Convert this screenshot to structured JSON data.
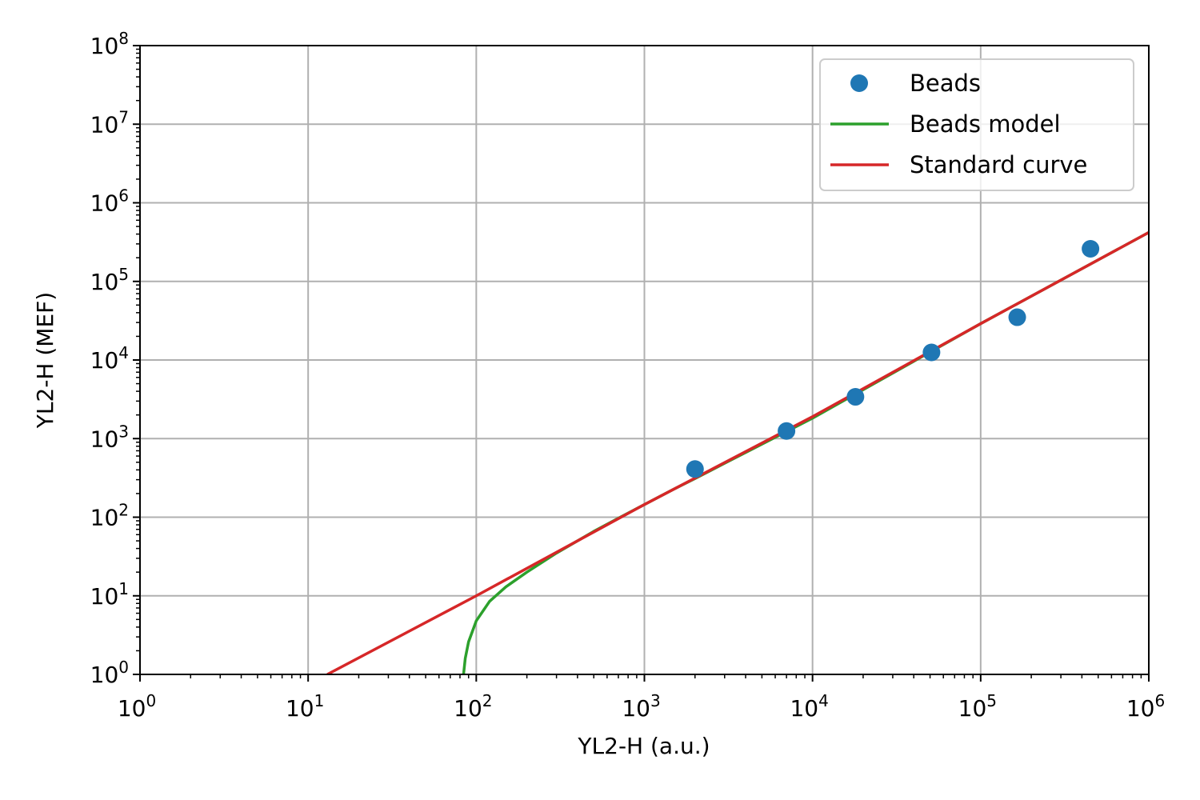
{
  "chart_data": {
    "type": "scatter",
    "title": "",
    "xlabel": "YL2-H (a.u.)",
    "ylabel": "YL2-H (MEF)",
    "xscale": "log",
    "yscale": "log",
    "xlim": [
      1,
      1000000
    ],
    "ylim": [
      1,
      100000000
    ],
    "x_ticks": [
      {
        "base": "10",
        "exp": "0"
      },
      {
        "base": "10",
        "exp": "1"
      },
      {
        "base": "10",
        "exp": "2"
      },
      {
        "base": "10",
        "exp": "3"
      },
      {
        "base": "10",
        "exp": "4"
      },
      {
        "base": "10",
        "exp": "5"
      },
      {
        "base": "10",
        "exp": "6"
      }
    ],
    "y_ticks": [
      {
        "base": "10",
        "exp": "0"
      },
      {
        "base": "10",
        "exp": "1"
      },
      {
        "base": "10",
        "exp": "2"
      },
      {
        "base": "10",
        "exp": "3"
      },
      {
        "base": "10",
        "exp": "4"
      },
      {
        "base": "10",
        "exp": "5"
      },
      {
        "base": "10",
        "exp": "6"
      },
      {
        "base": "10",
        "exp": "7"
      },
      {
        "base": "10",
        "exp": "8"
      }
    ],
    "grid": true,
    "legend_position": "top-right",
    "series": [
      {
        "name": "Beads",
        "kind": "markers",
        "color": "#1f77b4",
        "points": [
          {
            "x": 2000,
            "y": 410
          },
          {
            "x": 7000,
            "y": 1250
          },
          {
            "x": 18000,
            "y": 3400
          },
          {
            "x": 51000,
            "y": 12500
          },
          {
            "x": 165000,
            "y": 35000
          },
          {
            "x": 450000,
            "y": 260000
          }
        ]
      },
      {
        "name": "Beads model",
        "kind": "line",
        "color": "#2ca02c",
        "points": [
          {
            "x": 84,
            "y": 1
          },
          {
            "x": 86,
            "y": 1.6
          },
          {
            "x": 90,
            "y": 2.6
          },
          {
            "x": 100,
            "y": 4.8
          },
          {
            "x": 120,
            "y": 8.5
          },
          {
            "x": 150,
            "y": 13
          },
          {
            "x": 200,
            "y": 20
          },
          {
            "x": 300,
            "y": 35
          },
          {
            "x": 500,
            "y": 66
          },
          {
            "x": 700,
            "y": 97
          },
          {
            "x": 1000,
            "y": 145
          },
          {
            "x": 1500,
            "y": 228
          },
          {
            "x": 2000,
            "y": 310
          },
          {
            "x": 3000,
            "y": 485
          },
          {
            "x": 5000,
            "y": 850
          },
          {
            "x": 10000,
            "y": 1820
          },
          {
            "x": 100000,
            "y": 29000
          },
          {
            "x": 1000000,
            "y": 420000
          }
        ]
      },
      {
        "name": "Standard curve",
        "kind": "line",
        "color": "#d62728",
        "points": [
          {
            "x": 13,
            "y": 1
          },
          {
            "x": 100,
            "y": 10
          },
          {
            "x": 1000,
            "y": 145
          },
          {
            "x": 10000,
            "y": 1900
          },
          {
            "x": 100000,
            "y": 29000
          },
          {
            "x": 1000000,
            "y": 420000
          }
        ]
      }
    ]
  }
}
